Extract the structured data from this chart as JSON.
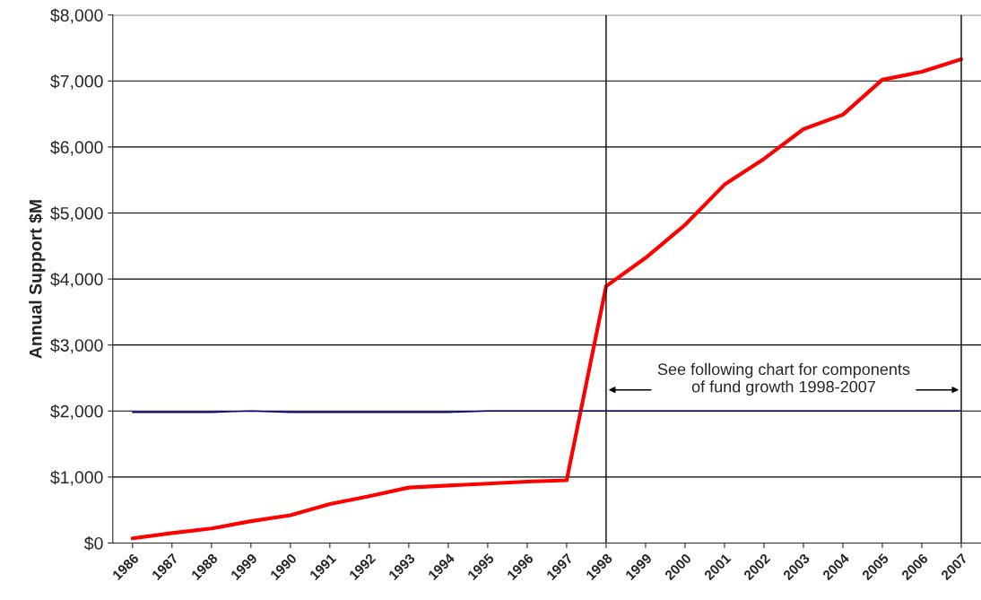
{
  "chart_data": {
    "type": "line",
    "ylabel": "Annual Support $M",
    "categories": [
      "1986",
      "1987",
      "1988",
      "1999",
      "1990",
      "1991",
      "1992",
      "1993",
      "1994",
      "1995",
      "1996",
      "1997",
      "1998",
      "1999",
      "2000",
      "2001",
      "2002",
      "2003",
      "2004",
      "2005",
      "2006",
      "2007"
    ],
    "series": [
      {
        "color": "#ff0000",
        "values": [
          70,
          150,
          220,
          330,
          420,
          590,
          710,
          840,
          870,
          900,
          930,
          950,
          3890,
          4320,
          4820,
          5430,
          5820,
          6270,
          6490,
          7020,
          7140,
          7330
        ]
      },
      {
        "color": "#000080",
        "values": [
          1980,
          1980,
          1980,
          2000,
          1980,
          1980,
          1980,
          1980,
          1980,
          2000,
          2000,
          2000,
          2000,
          2000,
          2000,
          2000,
          2000,
          2000,
          2000,
          2000,
          2000,
          2000
        ]
      }
    ],
    "ylim": [
      0,
      8000
    ],
    "yticks": [
      {
        "value": 0,
        "label": "$0"
      },
      {
        "value": 1000,
        "label": "$1,000"
      },
      {
        "value": 2000,
        "label": "$2,000"
      },
      {
        "value": 3000,
        "label": "$3,000"
      },
      {
        "value": 4000,
        "label": "$4,000"
      },
      {
        "value": 5000,
        "label": "$5,000"
      },
      {
        "value": 6000,
        "label": "$6,000"
      },
      {
        "value": 7000,
        "label": "$7,000"
      },
      {
        "value": 8000,
        "label": "$8,000"
      }
    ],
    "grid": "y",
    "ref_lines": [
      {
        "axis": "x",
        "value": "1998",
        "color": "#000000"
      },
      {
        "axis": "x",
        "value": "2007",
        "color": "#000000"
      }
    ],
    "annotations": [
      "See following chart for components\nof fund growth 1998-2007"
    ]
  }
}
